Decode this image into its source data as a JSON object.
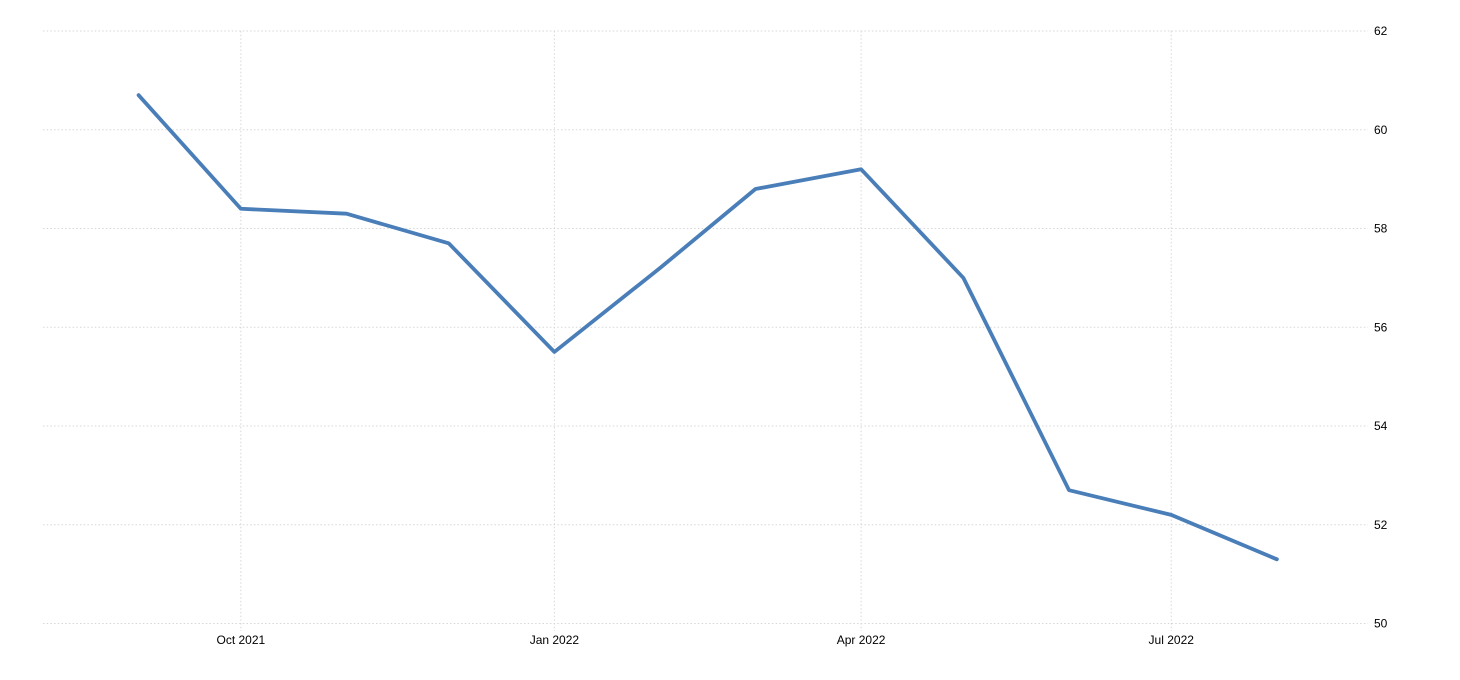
{
  "chart_data": {
    "type": "line",
    "title": "",
    "xlabel": "",
    "ylabel": "",
    "x": [
      "Sep 2021",
      "Oct 2021",
      "Nov 2021",
      "Dec 2021",
      "Jan 2022",
      "Feb 2022",
      "Mar 2022",
      "Apr 2022",
      "May 2022",
      "Jun 2022",
      "Jul 2022",
      "Aug 2022"
    ],
    "values": [
      60.7,
      58.4,
      58.3,
      57.7,
      55.5,
      57.2,
      58.8,
      59.2,
      57.0,
      52.7,
      52.2,
      51.3
    ],
    "ylim": [
      50,
      62
    ],
    "y_ticks": [
      50,
      52,
      54,
      56,
      58,
      60,
      62
    ],
    "x_tick_labels": [
      "Oct 2021",
      "Jan 2022",
      "Apr 2022",
      "Jul 2022"
    ],
    "x_tick_indices": [
      1,
      4,
      7,
      10
    ],
    "grid": "dotted",
    "legend": "none",
    "y_axis_side": "right",
    "colors": {
      "line": "#4a7eb8",
      "grid": "#d7d7d7",
      "text": "#000000",
      "background": "#ffffff"
    }
  }
}
